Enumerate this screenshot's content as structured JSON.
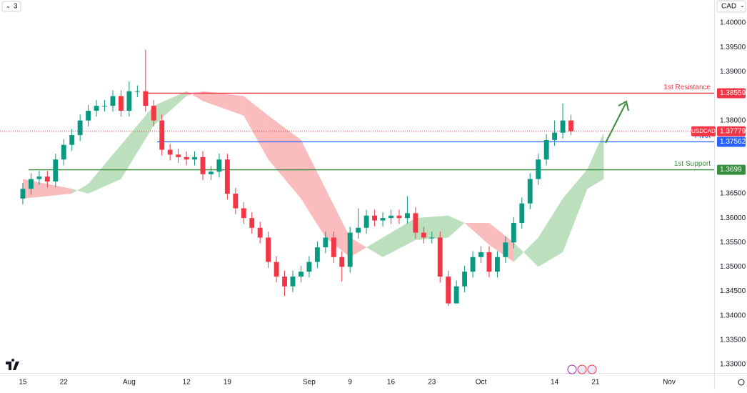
{
  "ui": {
    "interval": "3",
    "currency": "CAD"
  },
  "chart_data": {
    "type": "candlestick",
    "symbol": "USDCAD",
    "up_color": "#089981",
    "down_color": "#f23645",
    "xlim": [
      -2.79,
      84.5
    ],
    "ylim": [
      1.3256,
      1.4047
    ],
    "xticks": [
      {
        "value": 0,
        "label": "15"
      },
      {
        "value": 5,
        "label": "22"
      },
      {
        "value": 13,
        "label": "Aug"
      },
      {
        "value": 20,
        "label": "12"
      },
      {
        "value": 25,
        "label": "19"
      },
      {
        "value": 35,
        "label": "Sep"
      },
      {
        "value": 40,
        "label": "9"
      },
      {
        "value": 45,
        "label": "16"
      },
      {
        "value": 50,
        "label": "23"
      },
      {
        "value": 56,
        "label": "Oct"
      },
      {
        "value": 65,
        "label": "14"
      },
      {
        "value": 70,
        "label": "21"
      },
      {
        "value": 79,
        "label": "Nov"
      }
    ],
    "yticks": [
      {
        "value": 1.33,
        "label": "1.33000"
      },
      {
        "value": 1.335,
        "label": "1.33500"
      },
      {
        "value": 1.34,
        "label": "1.34000"
      },
      {
        "value": 1.345,
        "label": "1.34500"
      },
      {
        "value": 1.35,
        "label": "1.35000"
      },
      {
        "value": 1.355,
        "label": "1.35500"
      },
      {
        "value": 1.36,
        "label": "1.36000"
      },
      {
        "value": 1.365,
        "label": "1.36500"
      },
      {
        "value": 1.37,
        "label": "1.37000"
      },
      {
        "value": 1.375,
        "label": "1.37500"
      },
      {
        "value": 1.38,
        "label": "1.38000"
      },
      {
        "value": 1.385,
        "label": "1.38500"
      },
      {
        "value": 1.39,
        "label": "1.39000"
      },
      {
        "value": 1.395,
        "label": "1.39500"
      },
      {
        "value": 1.4,
        "label": "1.40000"
      }
    ],
    "open": [
      1.364,
      1.366,
      1.368,
      1.3685,
      1.3675,
      1.372,
      1.375,
      1.377,
      1.38,
      1.382,
      1.383,
      1.383,
      1.385,
      1.382,
      1.386,
      1.386,
      1.383,
      1.38,
      1.374,
      1.373,
      1.3725,
      1.372,
      1.3725,
      1.369,
      1.3695,
      1.372,
      1.365,
      1.362,
      1.36,
      1.358,
      1.356,
      1.351,
      1.348,
      1.346,
      1.348,
      1.349,
      1.351,
      1.354,
      1.356,
      1.352,
      1.35,
      1.357,
      1.358,
      1.3605,
      1.3595,
      1.36,
      1.3605,
      1.36,
      1.361,
      1.357,
      1.356,
      1.356,
      1.348,
      1.3425,
      1.346,
      1.349,
      1.352,
      1.353,
      1.349,
      1.352,
      1.355,
      1.359,
      1.363,
      1.368,
      1.372,
      1.376,
      1.3775,
      1.38
    ],
    "high": [
      1.3672,
      1.3692,
      1.3697,
      1.3697,
      1.3732,
      1.3762,
      1.3782,
      1.3812,
      1.3832,
      1.3842,
      1.3842,
      1.3862,
      1.3862,
      1.388,
      1.3872,
      1.3945,
      1.3842,
      1.3812,
      1.3752,
      1.3742,
      1.3737,
      1.3737,
      1.3737,
      1.3707,
      1.3732,
      1.3732,
      1.3662,
      1.3632,
      1.3612,
      1.3592,
      1.3572,
      1.3522,
      1.3492,
      1.3492,
      1.3502,
      1.3522,
      1.3552,
      1.3572,
      1.3572,
      1.3532,
      1.3582,
      1.362,
      1.3617,
      1.3617,
      1.3612,
      1.3617,
      1.3617,
      1.3645,
      1.3622,
      1.3582,
      1.3572,
      1.3572,
      1.3492,
      1.3472,
      1.3502,
      1.3532,
      1.3542,
      1.3542,
      1.3532,
      1.3562,
      1.3602,
      1.3642,
      1.3692,
      1.3732,
      1.3772,
      1.38,
      1.3835,
      1.3812
    ],
    "low": [
      1.3628,
      1.3648,
      1.3668,
      1.3663,
      1.3663,
      1.3708,
      1.3738,
      1.3758,
      1.3788,
      1.3808,
      1.3818,
      1.3818,
      1.3808,
      1.3808,
      1.3848,
      1.3818,
      1.3788,
      1.3728,
      1.3718,
      1.3713,
      1.3708,
      1.3708,
      1.3678,
      1.3678,
      1.3683,
      1.3638,
      1.3608,
      1.3588,
      1.3568,
      1.3548,
      1.3498,
      1.3468,
      1.344,
      1.3448,
      1.3468,
      1.3478,
      1.3498,
      1.3528,
      1.3508,
      1.347,
      1.3488,
      1.3558,
      1.3568,
      1.3583,
      1.3583,
      1.3588,
      1.3588,
      1.3588,
      1.3558,
      1.3548,
      1.3548,
      1.3468,
      1.342,
      1.343,
      1.3448,
      1.3478,
      1.3508,
      1.3478,
      1.3478,
      1.3508,
      1.3538,
      1.3578,
      1.3618,
      1.3668,
      1.3708,
      1.3748,
      1.3763,
      1.377
    ],
    "close": [
      1.366,
      1.368,
      1.3685,
      1.3675,
      1.372,
      1.375,
      1.377,
      1.38,
      1.382,
      1.383,
      1.383,
      1.385,
      1.382,
      1.386,
      1.386,
      1.383,
      1.38,
      1.374,
      1.373,
      1.3725,
      1.372,
      1.3725,
      1.369,
      1.3695,
      1.372,
      1.365,
      1.362,
      1.36,
      1.358,
      1.356,
      1.351,
      1.348,
      1.346,
      1.348,
      1.349,
      1.351,
      1.354,
      1.356,
      1.352,
      1.35,
      1.357,
      1.358,
      1.3605,
      1.3595,
      1.36,
      1.3605,
      1.36,
      1.361,
      1.357,
      1.356,
      1.356,
      1.348,
      1.3425,
      1.346,
      1.349,
      1.352,
      1.353,
      1.349,
      1.352,
      1.355,
      1.359,
      1.363,
      1.368,
      1.372,
      1.376,
      1.3775,
      1.38,
      1.3778
    ],
    "cloud": {
      "bull_color": "#a5d6a7",
      "bear_color": "#f8a5a5",
      "x": [
        0,
        6,
        8,
        12,
        16,
        20,
        22,
        27,
        30,
        34,
        37,
        40,
        42,
        44,
        48,
        52,
        54,
        57,
        60,
        63,
        66,
        69,
        71
      ],
      "span_a": [
        1.364,
        1.365,
        1.367,
        1.375,
        1.383,
        1.386,
        1.384,
        1.381,
        1.372,
        1.364,
        1.356,
        1.352,
        1.354,
        1.356,
        1.36,
        1.3605,
        1.359,
        1.3545,
        1.351,
        1.356,
        1.364,
        1.37,
        1.3775
      ],
      "span_b": [
        1.368,
        1.366,
        1.365,
        1.368,
        1.379,
        1.385,
        1.386,
        1.385,
        1.381,
        1.376,
        1.366,
        1.356,
        1.354,
        1.352,
        1.3555,
        1.356,
        1.359,
        1.359,
        1.355,
        1.35,
        1.353,
        1.366,
        1.368
      ]
    },
    "levels": [
      {
        "name": "1st Resistance",
        "value": 1.38559,
        "color": "#f23645"
      },
      {
        "name": "Pivot",
        "value": 1.37562,
        "color": "#2962ff"
      },
      {
        "name": "1st Support",
        "value": 1.3699,
        "color": "#388e3c"
      },
      {
        "name": "USDCAD",
        "value": 1.37779,
        "color": "#f23645"
      }
    ]
  }
}
